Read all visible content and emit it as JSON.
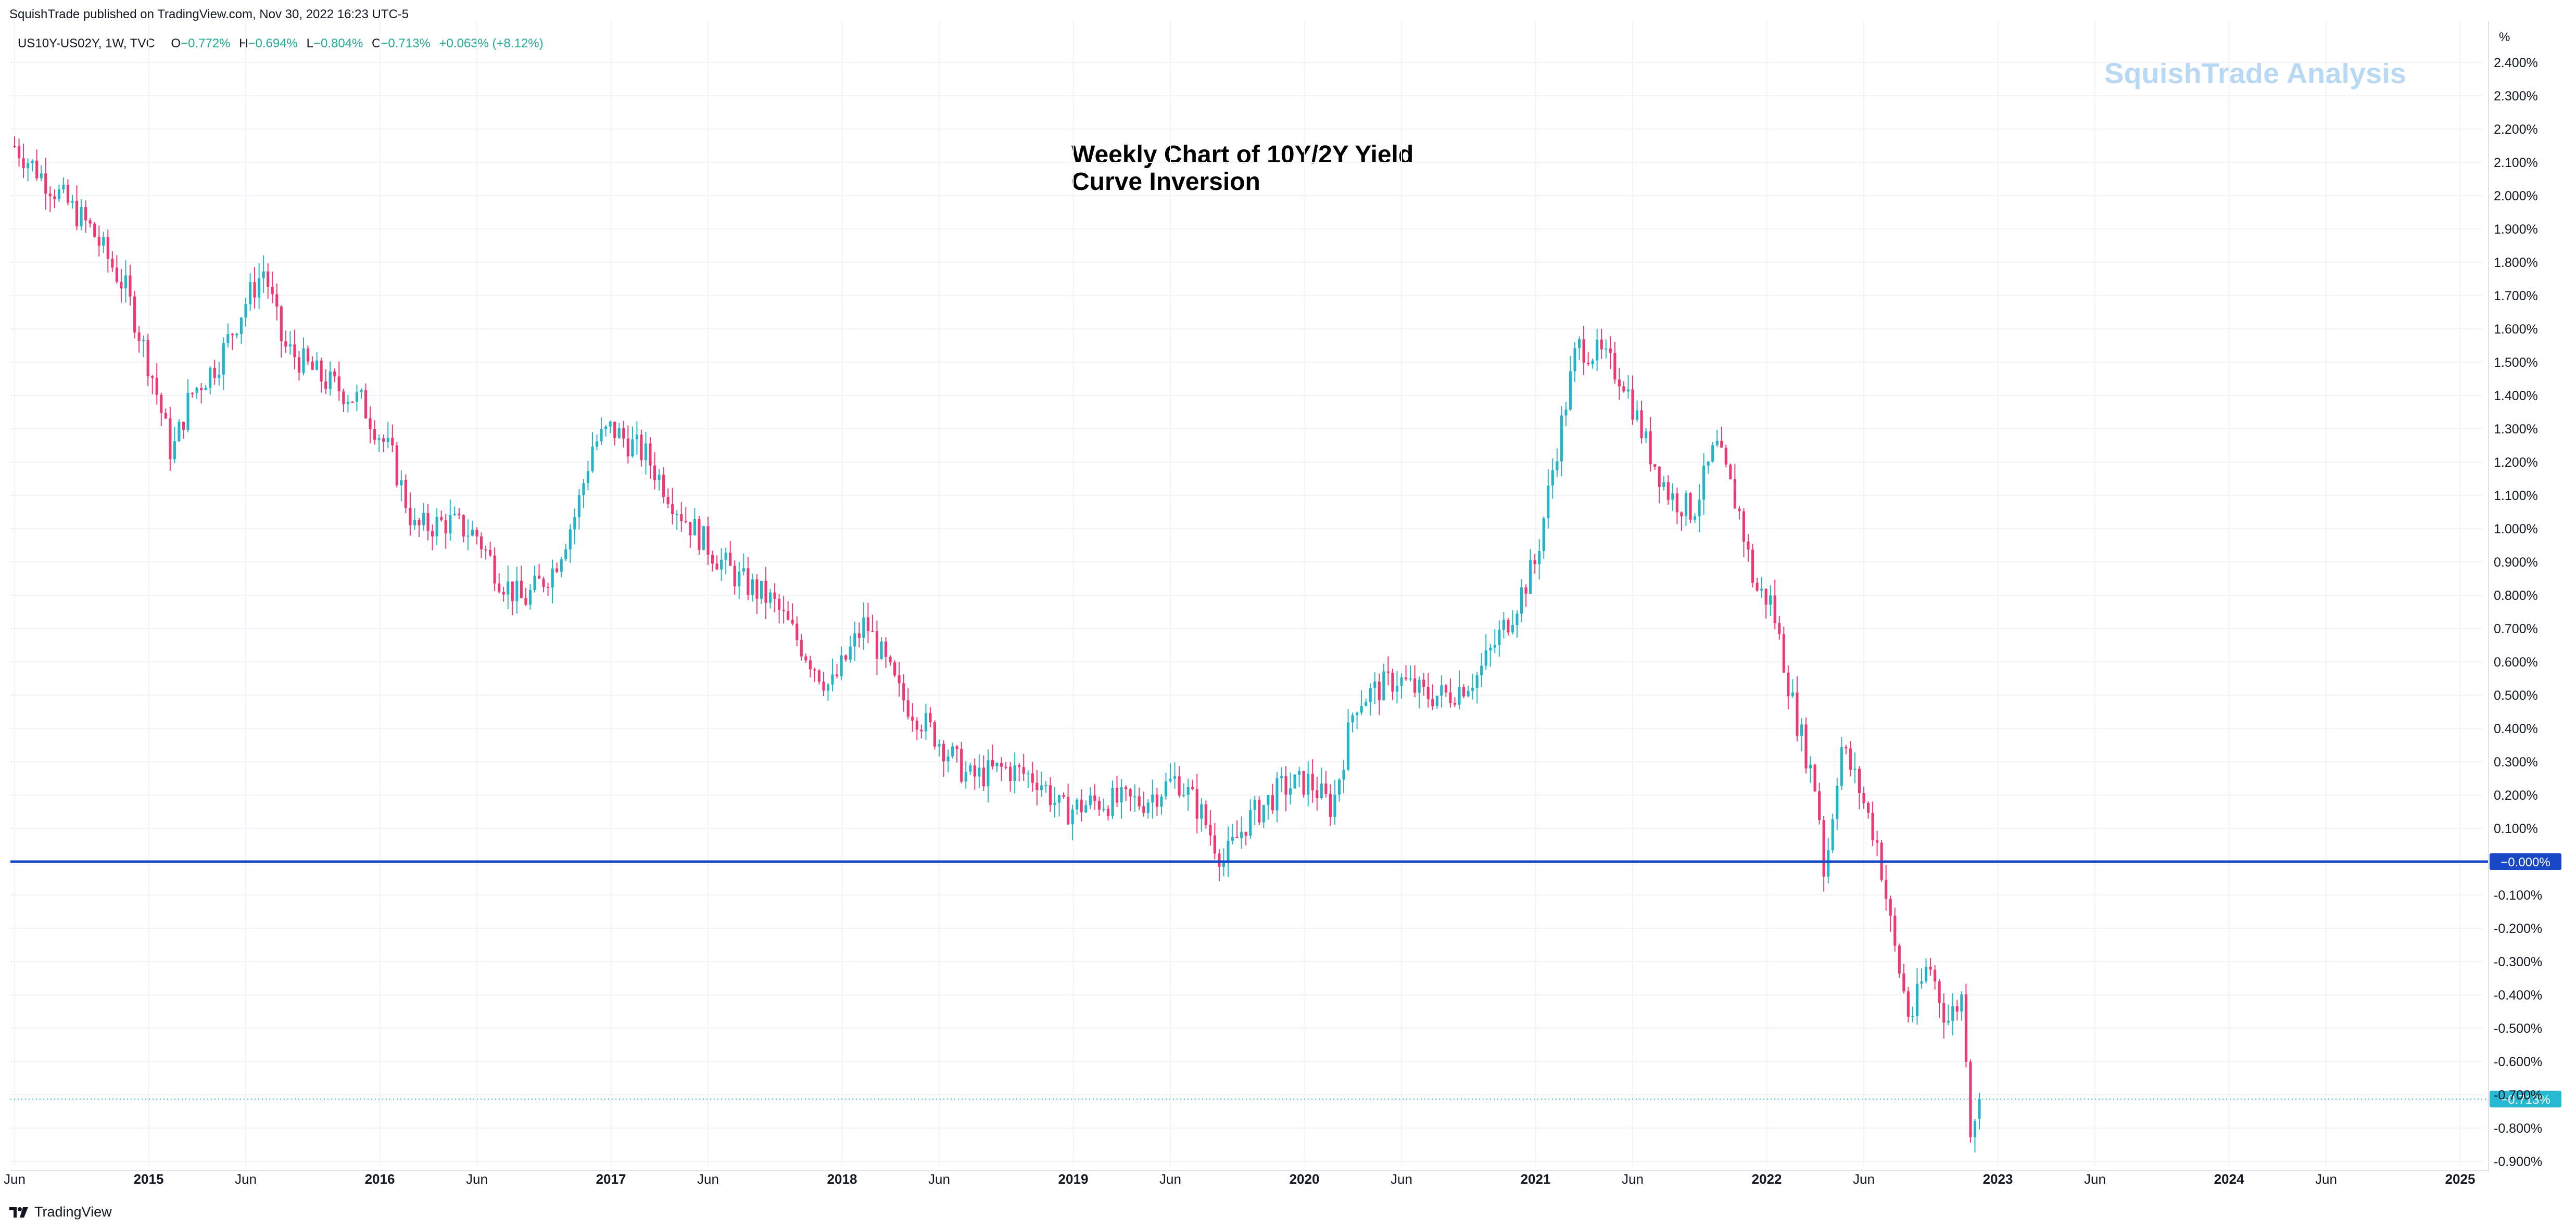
{
  "header": {
    "published": "SquishTrade published on TradingView.com, Nov 30, 2022 16:23 UTC-5"
  },
  "legend": {
    "symbol": "US10Y-US02Y, 1W, TVC",
    "o_label": "O",
    "o_value": "−0.772%",
    "h_label": "H",
    "h_value": "−0.694%",
    "l_label": "L",
    "l_value": "−0.804%",
    "c_label": "C",
    "c_value": "−0.713%",
    "change": "+0.063% (+8.12%)"
  },
  "watermark": "SquishTrade Analysis",
  "title_line1": "Weekly Chart of 10Y/2Y Yield",
  "title_line2": "Curve Inversion",
  "footer": {
    "brand": "TradingView"
  },
  "colors": {
    "up": "#22b5c8",
    "down": "#f23672",
    "hline": "#1848c8",
    "current": "#26b8d0",
    "grid": "#f0f3fa"
  },
  "chart_data": {
    "type": "candlestick",
    "title": "Weekly Chart of 10Y/2Y Yield Curve Inversion",
    "symbol": "US10Y-US02Y",
    "interval": "1W",
    "y_unit": "%",
    "ylim": [
      -0.9,
      2.5
    ],
    "xlim": [
      "2014-06-01",
      "2025-01-01"
    ],
    "y_ticks": [
      "2.400%",
      "2.300%",
      "2.200%",
      "2.100%",
      "2.000%",
      "1.900%",
      "1.800%",
      "1.700%",
      "1.600%",
      "1.500%",
      "1.400%",
      "1.300%",
      "1.200%",
      "1.100%",
      "1.000%",
      "0.900%",
      "0.800%",
      "0.700%",
      "0.600%",
      "0.500%",
      "0.400%",
      "0.300%",
      "0.200%",
      "0.100%",
      "-0.100%",
      "-0.200%",
      "-0.300%",
      "-0.400%",
      "-0.500%",
      "-0.600%",
      "-0.700%",
      "-0.800%",
      "-0.900%"
    ],
    "y_tick_values": [
      2.4,
      2.3,
      2.2,
      2.1,
      2.0,
      1.9,
      1.8,
      1.7,
      1.6,
      1.5,
      1.4,
      1.3,
      1.2,
      1.1,
      1.0,
      0.9,
      0.8,
      0.7,
      0.6,
      0.5,
      0.4,
      0.3,
      0.2,
      0.1,
      -0.1,
      -0.2,
      -0.3,
      -0.4,
      -0.5,
      -0.6,
      -0.7,
      -0.8,
      -0.9
    ],
    "x_ticks": [
      {
        "label": "Jun",
        "t": 2014.42
      },
      {
        "label": "2015",
        "t": 2015.0
      },
      {
        "label": "Jun",
        "t": 2015.42
      },
      {
        "label": "2016",
        "t": 2016.0
      },
      {
        "label": "Jun",
        "t": 2016.42
      },
      {
        "label": "2017",
        "t": 2017.0
      },
      {
        "label": "Jun",
        "t": 2017.42
      },
      {
        "label": "2018",
        "t": 2018.0
      },
      {
        "label": "Jun",
        "t": 2018.42
      },
      {
        "label": "2019",
        "t": 2019.0
      },
      {
        "label": "Jun",
        "t": 2019.42
      },
      {
        "label": "2020",
        "t": 2020.0
      },
      {
        "label": "Jun",
        "t": 2020.42
      },
      {
        "label": "2021",
        "t": 2021.0
      },
      {
        "label": "Jun",
        "t": 2021.42
      },
      {
        "label": "2022",
        "t": 2022.0
      },
      {
        "label": "Jun",
        "t": 2022.42
      },
      {
        "label": "2023",
        "t": 2023.0
      },
      {
        "label": "Jun",
        "t": 2023.42
      },
      {
        "label": "2024",
        "t": 2024.0
      },
      {
        "label": "Jun",
        "t": 2024.42
      },
      {
        "label": "2025",
        "t": 2025.0
      }
    ],
    "horizontal_line": {
      "value": 0.0,
      "label": "−0.000%"
    },
    "current_price": {
      "value": -0.713,
      "label": "−0.713%"
    },
    "last_candle": {
      "open": -0.772,
      "high": -0.694,
      "low": -0.804,
      "close": -0.713
    },
    "close_path": [
      [
        2014.42,
        2.15
      ],
      [
        2014.55,
        2.05
      ],
      [
        2014.75,
        1.9
      ],
      [
        2014.9,
        1.72
      ],
      [
        2015.02,
        1.45
      ],
      [
        2015.1,
        1.22
      ],
      [
        2015.18,
        1.4
      ],
      [
        2015.3,
        1.5
      ],
      [
        2015.42,
        1.68
      ],
      [
        2015.5,
        1.78
      ],
      [
        2015.58,
        1.55
      ],
      [
        2015.75,
        1.45
      ],
      [
        2015.92,
        1.38
      ],
      [
        2016.05,
        1.22
      ],
      [
        2016.15,
        1.0
      ],
      [
        2016.3,
        1.02
      ],
      [
        2016.42,
        0.98
      ],
      [
        2016.52,
        0.85
      ],
      [
        2016.62,
        0.78
      ],
      [
        2016.75,
        0.88
      ],
      [
        2016.85,
        1.05
      ],
      [
        2016.92,
        1.25
      ],
      [
        2017.0,
        1.3
      ],
      [
        2017.15,
        1.22
      ],
      [
        2017.3,
        1.05
      ],
      [
        2017.45,
        0.92
      ],
      [
        2017.55,
        0.85
      ],
      [
        2017.7,
        0.78
      ],
      [
        2017.85,
        0.62
      ],
      [
        2017.95,
        0.52
      ],
      [
        2018.1,
        0.72
      ],
      [
        2018.25,
        0.5
      ],
      [
        2018.4,
        0.38
      ],
      [
        2018.55,
        0.25
      ],
      [
        2018.7,
        0.28
      ],
      [
        2018.85,
        0.25
      ],
      [
        2018.95,
        0.15
      ],
      [
        2019.1,
        0.18
      ],
      [
        2019.3,
        0.18
      ],
      [
        2019.45,
        0.25
      ],
      [
        2019.55,
        0.15
      ],
      [
        2019.65,
        0.0
      ],
      [
        2019.75,
        0.12
      ],
      [
        2019.9,
        0.22
      ],
      [
        2020.02,
        0.24
      ],
      [
        2020.12,
        0.16
      ],
      [
        2020.22,
        0.48
      ],
      [
        2020.4,
        0.55
      ],
      [
        2020.52,
        0.5
      ],
      [
        2020.62,
        0.5
      ],
      [
        2020.75,
        0.56
      ],
      [
        2020.9,
        0.75
      ],
      [
        2021.0,
        0.9
      ],
      [
        2021.08,
        1.2
      ],
      [
        2021.18,
        1.55
      ],
      [
        2021.28,
        1.52
      ],
      [
        2021.38,
        1.45
      ],
      [
        2021.48,
        1.25
      ],
      [
        2021.58,
        1.1
      ],
      [
        2021.68,
        1.05
      ],
      [
        2021.78,
        1.25
      ],
      [
        2021.88,
        1.05
      ],
      [
        2021.95,
        0.82
      ],
      [
        2022.02,
        0.78
      ],
      [
        2022.12,
        0.45
      ],
      [
        2022.22,
        0.2
      ],
      [
        2022.25,
        -0.05
      ],
      [
        2022.32,
        0.35
      ],
      [
        2022.4,
        0.22
      ],
      [
        2022.48,
        0.05
      ],
      [
        2022.55,
        -0.25
      ],
      [
        2022.62,
        -0.48
      ],
      [
        2022.7,
        -0.3
      ],
      [
        2022.78,
        -0.48
      ],
      [
        2022.85,
        -0.4
      ],
      [
        2022.88,
        -0.8
      ],
      [
        2022.92,
        -0.713
      ]
    ]
  }
}
